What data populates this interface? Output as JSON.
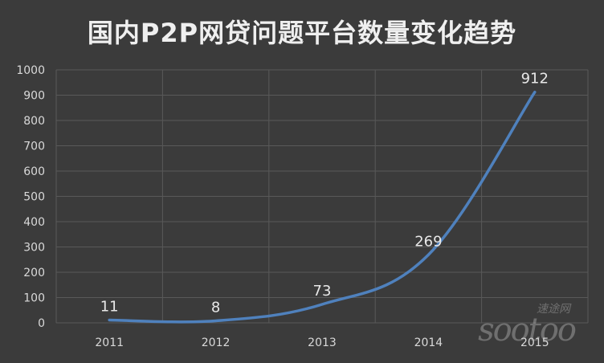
{
  "chart_data": {
    "type": "line",
    "title": "国内P2P网贷问题平台数量变化趋势",
    "categories": [
      "2011",
      "2012",
      "2013",
      "2014",
      "2015"
    ],
    "series": [
      {
        "values": [
          11,
          8,
          73,
          269,
          912
        ],
        "color": "#4f81bd"
      }
    ],
    "data_labels": [
      "11",
      "8",
      "73",
      "269",
      "912"
    ],
    "yticks": [
      "0",
      "100",
      "200",
      "300",
      "400",
      "500",
      "600",
      "700",
      "800",
      "900",
      "1000"
    ],
    "ylim": [
      0,
      1000
    ],
    "xlabel": "",
    "ylabel": "",
    "grid": true,
    "legend": "none"
  },
  "watermark": {
    "top": "速途网",
    "main": "sootoo"
  },
  "colors": {
    "background": "#3b3b3b",
    "grid": "#595959",
    "text": "#d9d9d9",
    "line": "#4f81bd"
  }
}
